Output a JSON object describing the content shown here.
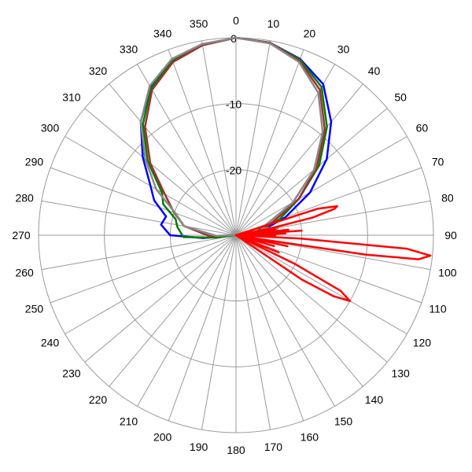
{
  "chart_data": {
    "type": "line",
    "coordinate_system": "polar",
    "angle_unit": "degrees",
    "angle_zero": "top",
    "angle_direction": "clockwise",
    "angle_step": 10,
    "angle_ticks": [
      0,
      10,
      20,
      30,
      40,
      50,
      60,
      70,
      80,
      90,
      100,
      110,
      120,
      130,
      140,
      150,
      160,
      170,
      180,
      190,
      200,
      210,
      220,
      230,
      240,
      250,
      260,
      270,
      280,
      290,
      300,
      310,
      320,
      330,
      340,
      350
    ],
    "angle_tick_labels": [
      "0",
      "10",
      "20",
      "30",
      "40",
      "50",
      "60",
      "70",
      "80",
      "90",
      "100",
      "110",
      "120",
      "130",
      "140",
      "150",
      "160",
      "170",
      "180",
      "190",
      "200",
      "210",
      "220",
      "230",
      "240",
      "250",
      "260",
      "270",
      "280",
      "290",
      "300",
      "310",
      "320",
      "330",
      "340",
      "350"
    ],
    "r_range": [
      -30,
      0
    ],
    "r_ticks": [
      -30,
      -20,
      -10,
      0
    ],
    "r_tick_labels": [
      "-20",
      "-10",
      "0"
    ],
    "r_tick_label_values": [
      -20,
      -10,
      0
    ],
    "grid": true,
    "legend": "none",
    "title": "",
    "series": [
      {
        "color": "#0000ff",
        "points": [
          [
            0,
            0
          ],
          [
            10,
            -0.3
          ],
          [
            20,
            -1.5
          ],
          [
            30,
            -3.5
          ],
          [
            40,
            -7.5
          ],
          [
            50,
            -12
          ],
          [
            60,
            -17
          ],
          [
            70,
            -22
          ],
          [
            80,
            -26
          ],
          [
            90,
            -29
          ],
          [
            100,
            -30
          ],
          [
            260,
            -30
          ],
          [
            265,
            -25
          ],
          [
            270,
            -20
          ],
          [
            278,
            -18.5
          ],
          [
            285,
            -19
          ],
          [
            293,
            -16.5
          ],
          [
            300,
            -15
          ],
          [
            310,
            -11.5
          ],
          [
            320,
            -7.5
          ],
          [
            330,
            -4
          ],
          [
            340,
            -1.8
          ],
          [
            350,
            -0.6
          ],
          [
            360,
            0
          ]
        ]
      },
      {
        "color": "#008000",
        "points": [
          [
            0,
            0
          ],
          [
            10,
            -0.3
          ],
          [
            20,
            -1.6
          ],
          [
            30,
            -4
          ],
          [
            40,
            -8.5
          ],
          [
            50,
            -13.5
          ],
          [
            60,
            -19
          ],
          [
            70,
            -23
          ],
          [
            80,
            -27
          ],
          [
            90,
            -29.5
          ],
          [
            100,
            -30
          ],
          [
            260,
            -30
          ],
          [
            263,
            -27
          ],
          [
            268,
            -22
          ],
          [
            278,
            -21
          ],
          [
            285,
            -20.5
          ],
          [
            293,
            -18
          ],
          [
            300,
            -17
          ],
          [
            310,
            -12.5
          ],
          [
            320,
            -8
          ],
          [
            330,
            -4.2
          ],
          [
            340,
            -1.8
          ],
          [
            350,
            -0.6
          ],
          [
            360,
            0
          ]
        ]
      },
      {
        "color": "#a03030",
        "points": [
          [
            0,
            0
          ],
          [
            10,
            -0.3
          ],
          [
            20,
            -1.8
          ],
          [
            30,
            -4.5
          ],
          [
            40,
            -9
          ],
          [
            50,
            -14
          ],
          [
            60,
            -19
          ],
          [
            70,
            -24
          ],
          [
            80,
            -26
          ],
          [
            84,
            -23.5
          ],
          [
            90,
            -27.5
          ],
          [
            100,
            -30
          ],
          [
            260,
            -30
          ],
          [
            268,
            -26
          ],
          [
            280,
            -22
          ],
          [
            290,
            -20
          ],
          [
            300,
            -17.5
          ],
          [
            310,
            -13
          ],
          [
            320,
            -8.5
          ],
          [
            330,
            -4.5
          ],
          [
            340,
            -2
          ],
          [
            350,
            -0.7
          ],
          [
            360,
            0
          ]
        ]
      },
      {
        "color": "#888888",
        "points": [
          [
            0,
            0
          ],
          [
            10,
            -0.4
          ],
          [
            20,
            -2
          ],
          [
            30,
            -5
          ],
          [
            40,
            -9.5
          ],
          [
            50,
            -14.5
          ],
          [
            60,
            -20
          ],
          [
            70,
            -25
          ],
          [
            75,
            -26
          ],
          [
            80,
            -23.5
          ],
          [
            85,
            -24.5
          ],
          [
            90,
            -27.5
          ],
          [
            100,
            -30
          ],
          [
            260,
            -30
          ],
          [
            268,
            -27
          ],
          [
            280,
            -22
          ],
          [
            290,
            -20.2
          ],
          [
            300,
            -16
          ],
          [
            310,
            -12
          ],
          [
            320,
            -7.5
          ],
          [
            330,
            -3.8
          ],
          [
            340,
            -1.5
          ],
          [
            350,
            -0.5
          ],
          [
            360,
            0
          ]
        ]
      },
      {
        "color": "#ff0000",
        "points": [
          [
            0,
            -30
          ],
          [
            65,
            -30
          ],
          [
            72,
            -17
          ],
          [
            74,
            -14
          ],
          [
            75,
            -14.5
          ],
          [
            77,
            -18
          ],
          [
            79,
            -25
          ],
          [
            80,
            -30
          ],
          [
            81,
            -24
          ],
          [
            82,
            -30
          ],
          [
            84,
            -22
          ],
          [
            85,
            -30
          ],
          [
            86,
            -20
          ],
          [
            87,
            -30
          ],
          [
            88,
            -22.5
          ],
          [
            89,
            -30
          ],
          [
            90,
            -24
          ],
          [
            91,
            -30
          ],
          [
            93,
            -20
          ],
          [
            94.5,
            -4
          ],
          [
            96,
            -0.3
          ],
          [
            97.5,
            -2
          ],
          [
            98.5,
            -10
          ],
          [
            100,
            -28
          ],
          [
            102,
            -22
          ],
          [
            104,
            -30
          ],
          [
            106,
            -24
          ],
          [
            108,
            -30
          ],
          [
            112,
            -23
          ],
          [
            114,
            -30
          ],
          [
            116,
            -20
          ],
          [
            118,
            -12
          ],
          [
            120,
            -10
          ],
          [
            122,
            -12.5
          ],
          [
            124,
            -18
          ],
          [
            126,
            -30
          ],
          [
            360,
            -30
          ]
        ]
      }
    ]
  }
}
